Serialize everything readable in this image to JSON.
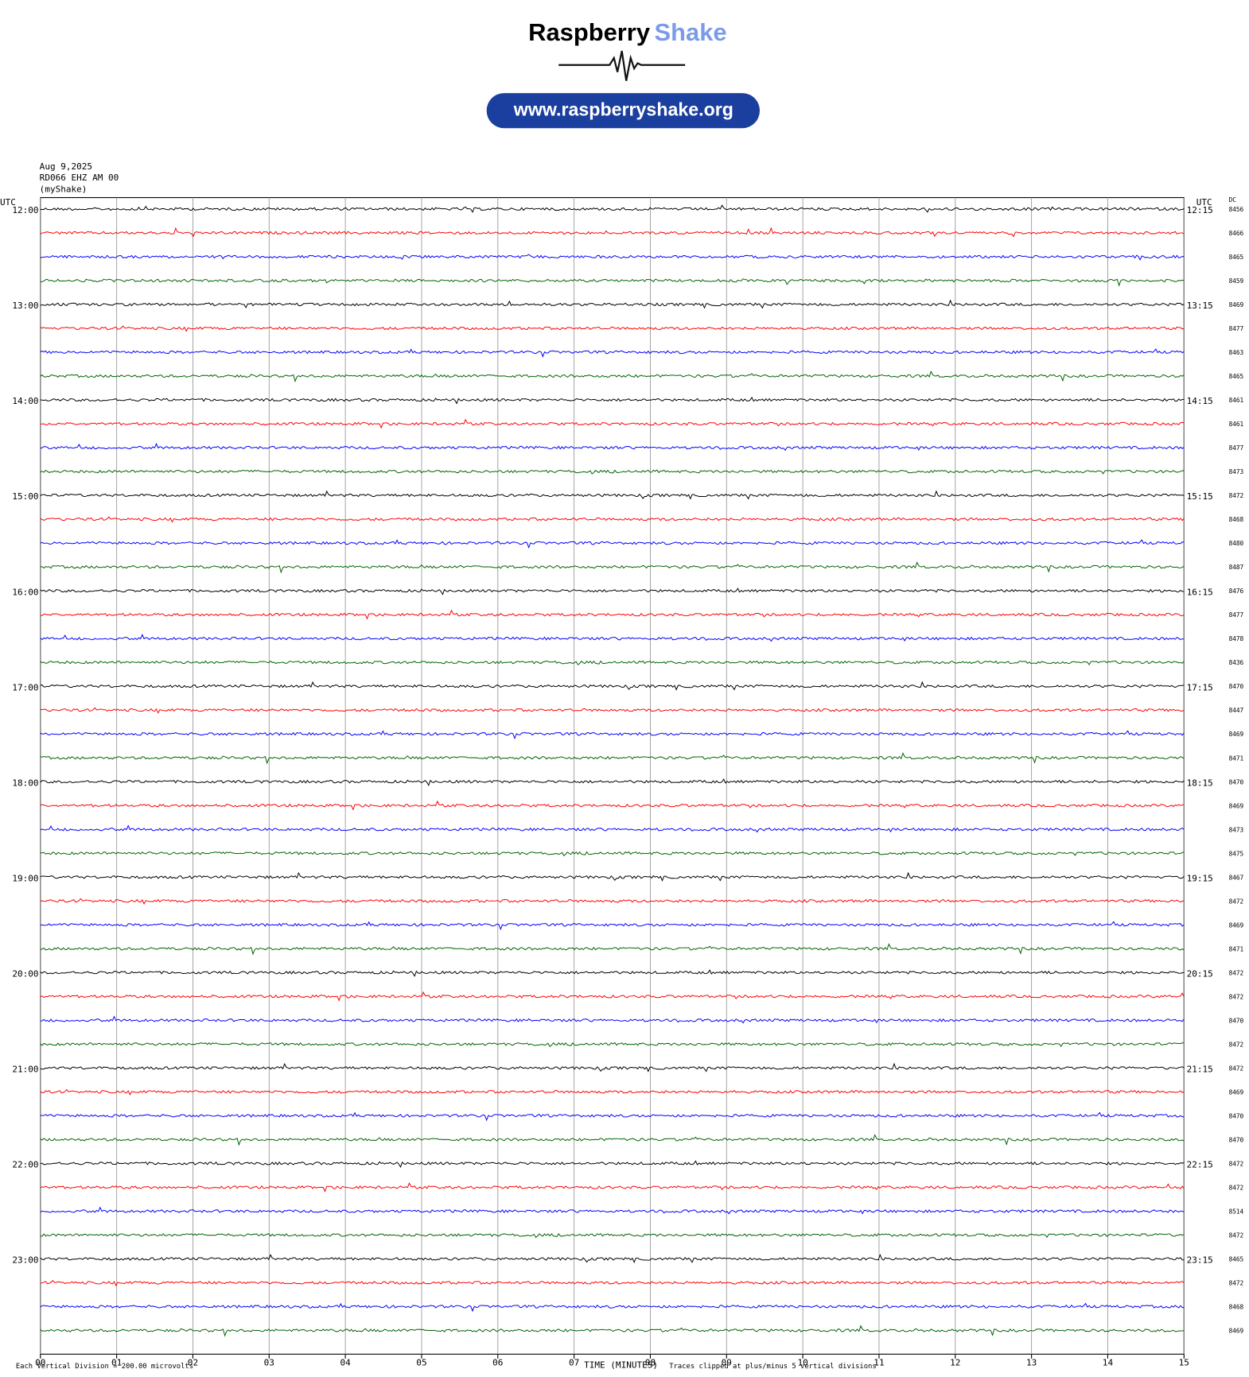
{
  "header": {
    "logo_left": "Raspberry",
    "logo_right": "Shake",
    "url": "www.raspberryshake.org"
  },
  "chart_data": {
    "type": "helicorder",
    "date": "Aug 9,2025",
    "station": "RD066 EHZ AM 00",
    "source": "(myShake)",
    "left_axis_label": "UTC",
    "right_axis_label": "UTC",
    "dc_label": "DC",
    "row_labels_left": [
      "12:00",
      "13:00",
      "14:00",
      "15:00",
      "16:00",
      "17:00",
      "18:00",
      "19:00",
      "20:00",
      "21:00",
      "22:00",
      "23:00"
    ],
    "row_labels_right": [
      "12:15",
      "13:15",
      "14:15",
      "15:15",
      "16:15",
      "17:15",
      "18:15",
      "19:15",
      "20:15",
      "21:15",
      "22:15",
      "23:15"
    ],
    "dc_values": [
      8456,
      8466,
      8465,
      8459,
      8469,
      8477,
      8463,
      8465,
      8461,
      8461,
      8477,
      8473,
      8472,
      8468,
      8480,
      8487,
      8476,
      8477,
      8478,
      8436,
      8470,
      8447,
      8469,
      8471,
      8470,
      8469,
      8473,
      8475,
      8467,
      8472,
      8469,
      8471,
      8472,
      8472,
      8470,
      8472,
      8472,
      8469,
      8470,
      8470,
      8472,
      8472,
      8514,
      8472,
      8465,
      8472,
      8468,
      8469
    ],
    "trace_colors": [
      "#000000",
      "#ff0000",
      "#0000ff",
      "#006400"
    ],
    "xlim": [
      0,
      15
    ],
    "xticks": [
      {
        "value": 0,
        "label": "00"
      },
      {
        "value": 1,
        "label": "01"
      },
      {
        "value": 2,
        "label": "02"
      },
      {
        "value": 3,
        "label": "03"
      },
      {
        "value": 4,
        "label": "04"
      },
      {
        "value": 5,
        "label": "05"
      },
      {
        "value": 6,
        "label": "06"
      },
      {
        "value": 7,
        "label": "07"
      },
      {
        "value": 8,
        "label": "08"
      },
      {
        "value": 9,
        "label": "09"
      },
      {
        "value": 10,
        "label": "10"
      },
      {
        "value": 11,
        "label": "11"
      },
      {
        "value": 12,
        "label": "12"
      },
      {
        "value": 13,
        "label": "13"
      },
      {
        "value": 14,
        "label": "14"
      },
      {
        "value": 15,
        "label": "15"
      }
    ],
    "xlabel": "TIME (MINUTES)",
    "scale_note": "Each Vertical Division =  200.00 microvolts",
    "clip_note": "Traces clipped at plus/minus 5 vertical divisions",
    "grid": true
  }
}
